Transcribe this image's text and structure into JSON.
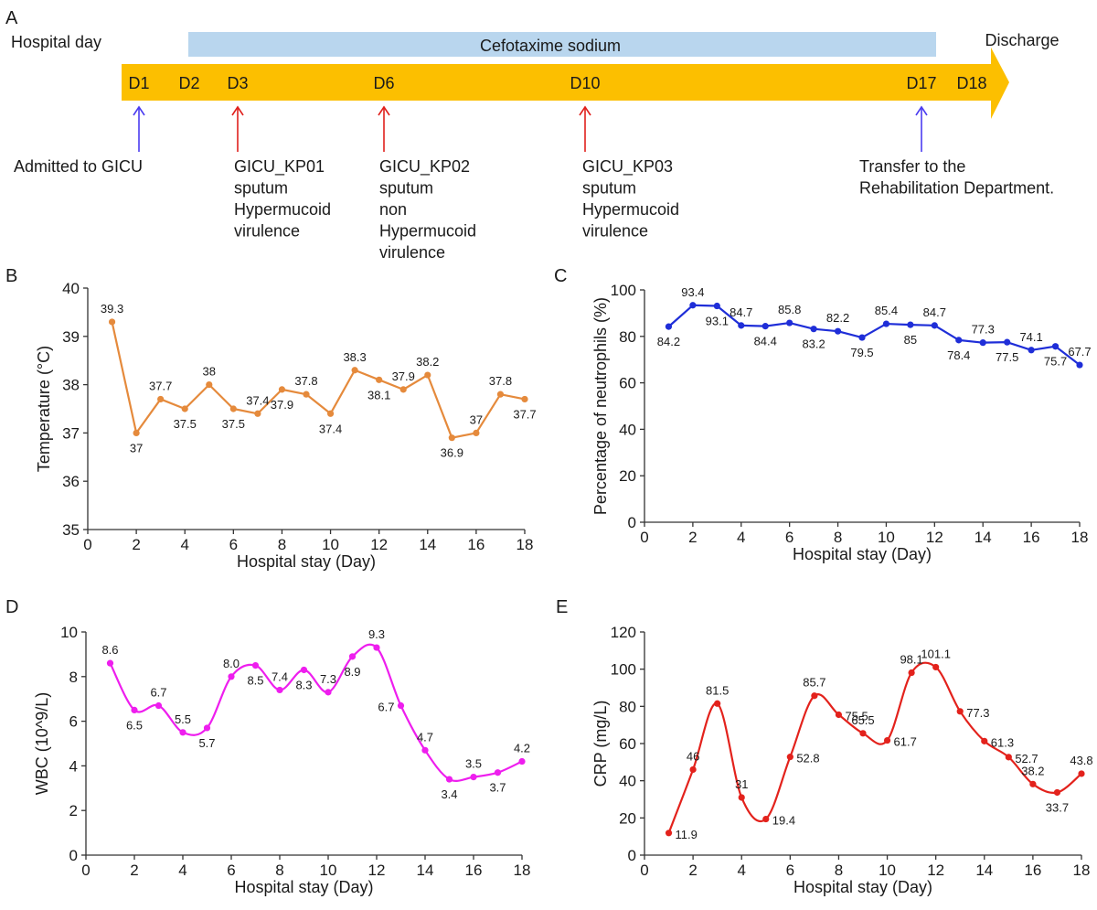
{
  "timeline": {
    "panel_letter": "A",
    "hospital_day_label": "Hospital day",
    "drug_label": "Cefotaxime sodium",
    "discharge_label": "Discharge",
    "days": [
      {
        "label": "D1",
        "day": 1
      },
      {
        "label": "D2",
        "day": 2
      },
      {
        "label": "D3",
        "day": 3
      },
      {
        "label": "D6",
        "day": 6
      },
      {
        "label": "D10",
        "day": 10
      },
      {
        "label": "D17",
        "day": 17
      },
      {
        "label": "D18",
        "day": 18
      }
    ],
    "events": [
      {
        "day": 1,
        "arrow_color": "#4b3cf0",
        "lines": [
          "Admitted to GICU"
        ]
      },
      {
        "day": 3,
        "arrow_color": "#e0201c",
        "lines": [
          "GICU_KP01",
          "sputum",
          "Hypermucoid",
          "virulence"
        ]
      },
      {
        "day": 6,
        "arrow_color": "#e0201c",
        "lines": [
          "GICU_KP02",
          "sputum",
          "non",
          "Hypermucoid",
          "virulence"
        ]
      },
      {
        "day": 10,
        "arrow_color": "#e0201c",
        "lines": [
          "GICU_KP03",
          "sputum",
          "Hypermucoid",
          "virulence"
        ]
      },
      {
        "day": 17,
        "arrow_color": "#4b3cf0",
        "lines": [
          "Transfer to the",
          "Rehabilitation Department."
        ]
      }
    ],
    "colors": {
      "bar": "#fcbf00",
      "drug_band": "#b9d6ee"
    }
  },
  "chart_data": [
    {
      "panel": "B",
      "type": "line",
      "smooth": false,
      "color": "#e58a3c",
      "xlabel": "Hospital stay (Day)",
      "ylabel": "Temperature (°C)",
      "xlim": [
        0,
        18
      ],
      "ylim": [
        35,
        40
      ],
      "xticks": [
        0,
        2,
        4,
        6,
        8,
        10,
        12,
        14,
        16,
        18
      ],
      "yticks": [
        35,
        36,
        37,
        38,
        39,
        40
      ],
      "x": [
        1,
        2,
        3,
        4,
        5,
        6,
        7,
        8,
        9,
        10,
        11,
        12,
        13,
        14,
        15,
        16,
        17,
        18
      ],
      "values": [
        39.3,
        37,
        37.7,
        37.5,
        38,
        37.5,
        37.4,
        37.9,
        37.8,
        37.4,
        38.3,
        38.1,
        37.9,
        38.2,
        36.9,
        37,
        37.8,
        37.7
      ],
      "labels": [
        "39.3",
        "37",
        "37.7",
        "37.5",
        "38",
        "37.5",
        "37.4",
        "37.9",
        "37.8",
        "37.4",
        "38.3",
        "38.1",
        "37.9",
        "38.2",
        "36.9",
        "37",
        "37.8",
        "37.7"
      ],
      "label_side": [
        "up",
        "down",
        "up",
        "down",
        "up",
        "down",
        "up",
        "down",
        "up",
        "down",
        "up",
        "down",
        "up",
        "up",
        "down",
        "up",
        "up",
        "down"
      ]
    },
    {
      "panel": "C",
      "type": "line",
      "smooth": false,
      "color": "#1f2ed8",
      "xlabel": "Hospital stay (Day)",
      "ylabel": "Percentage of neutrophils (%)",
      "xlim": [
        0,
        18
      ],
      "ylim": [
        0,
        100
      ],
      "xticks": [
        0,
        2,
        4,
        6,
        8,
        10,
        12,
        14,
        16,
        18
      ],
      "yticks": [
        0,
        20,
        40,
        60,
        80,
        100
      ],
      "x": [
        1,
        2,
        3,
        4,
        5,
        6,
        7,
        8,
        9,
        10,
        11,
        12,
        13,
        14,
        15,
        16,
        17,
        18
      ],
      "values": [
        84.2,
        93.4,
        93.1,
        84.7,
        84.4,
        85.8,
        83.2,
        82.2,
        79.5,
        85.4,
        85,
        84.7,
        78.4,
        77.3,
        77.5,
        74.1,
        75.7,
        67.7
      ],
      "labels": [
        "84.2",
        "93.4",
        "93.1",
        "84.7",
        "84.4",
        "85.8",
        "83.2",
        "82.2",
        "79.5",
        "85.4",
        "85",
        "84.7",
        "78.4",
        "77.3",
        "77.5",
        "74.1",
        "75.7",
        "67.7"
      ],
      "label_side": [
        "down",
        "up",
        "down",
        "up",
        "down",
        "up",
        "down",
        "up",
        "down",
        "up",
        "down",
        "up",
        "down",
        "up",
        "down",
        "up",
        "down",
        "up"
      ]
    },
    {
      "panel": "D",
      "type": "line",
      "smooth": true,
      "color": "#ee1eee",
      "xlabel": "Hospital stay (Day)",
      "ylabel": "WBC (10^9/L)",
      "xlim": [
        0,
        18
      ],
      "ylim": [
        0,
        10
      ],
      "xticks": [
        0,
        2,
        4,
        6,
        8,
        10,
        12,
        14,
        16,
        18
      ],
      "yticks": [
        0,
        2,
        4,
        6,
        8,
        10
      ],
      "x": [
        1,
        2,
        3,
        4,
        5,
        6,
        7,
        8,
        9,
        10,
        11,
        12,
        13,
        14,
        15,
        16,
        17,
        18
      ],
      "values": [
        8.6,
        6.5,
        6.7,
        5.5,
        5.7,
        8.0,
        8.5,
        7.4,
        8.3,
        7.3,
        8.9,
        9.3,
        6.7,
        4.7,
        3.4,
        3.5,
        3.7,
        4.2
      ],
      "labels": [
        "8.6",
        "6.5",
        "6.7",
        "5.5",
        "5.7",
        "8.0",
        "8.5",
        "7.4",
        "8.3",
        "7.3",
        "8.9",
        "9.3",
        "6.7",
        "4.7",
        "3.4",
        "3.5",
        "3.7",
        "4.2"
      ],
      "label_side": [
        "up",
        "down",
        "up",
        "up",
        "down",
        "up",
        "down",
        "up",
        "down",
        "up",
        "down",
        "up",
        "left",
        "up",
        "down",
        "up",
        "down",
        "up"
      ]
    },
    {
      "panel": "E",
      "type": "line",
      "smooth": true,
      "color": "#e3221c",
      "xlabel": "Hospital stay (Day)",
      "ylabel": "CRP (mg/L)",
      "xlim": [
        0,
        18
      ],
      "ylim": [
        0,
        120
      ],
      "xticks": [
        0,
        2,
        4,
        6,
        8,
        10,
        12,
        14,
        16,
        18
      ],
      "yticks": [
        0,
        20,
        40,
        60,
        80,
        100,
        120
      ],
      "x": [
        1,
        2,
        3,
        4,
        5,
        6,
        7,
        8,
        9,
        10,
        11,
        12,
        13,
        14,
        15,
        16,
        17,
        18
      ],
      "values": [
        11.9,
        46,
        81.5,
        31,
        19.4,
        52.8,
        85.7,
        75.5,
        65.5,
        61.7,
        98.1,
        101.1,
        77.3,
        61.3,
        52.7,
        38.2,
        33.7,
        43.8
      ],
      "labels": [
        "11.9",
        "46",
        "81.5",
        "31",
        "19.4",
        "52.8",
        "85.7",
        "75.5",
        "65.5",
        "61.7",
        "98.1",
        "101.1",
        "77.3",
        "61.3",
        "52.7",
        "38.2",
        "33.7",
        "43.8"
      ],
      "label_side": [
        "right",
        "up",
        "up",
        "up",
        "right",
        "right",
        "up",
        "right",
        "up",
        "right",
        "up",
        "up",
        "right",
        "right",
        "right",
        "up",
        "down",
        "up"
      ]
    }
  ]
}
